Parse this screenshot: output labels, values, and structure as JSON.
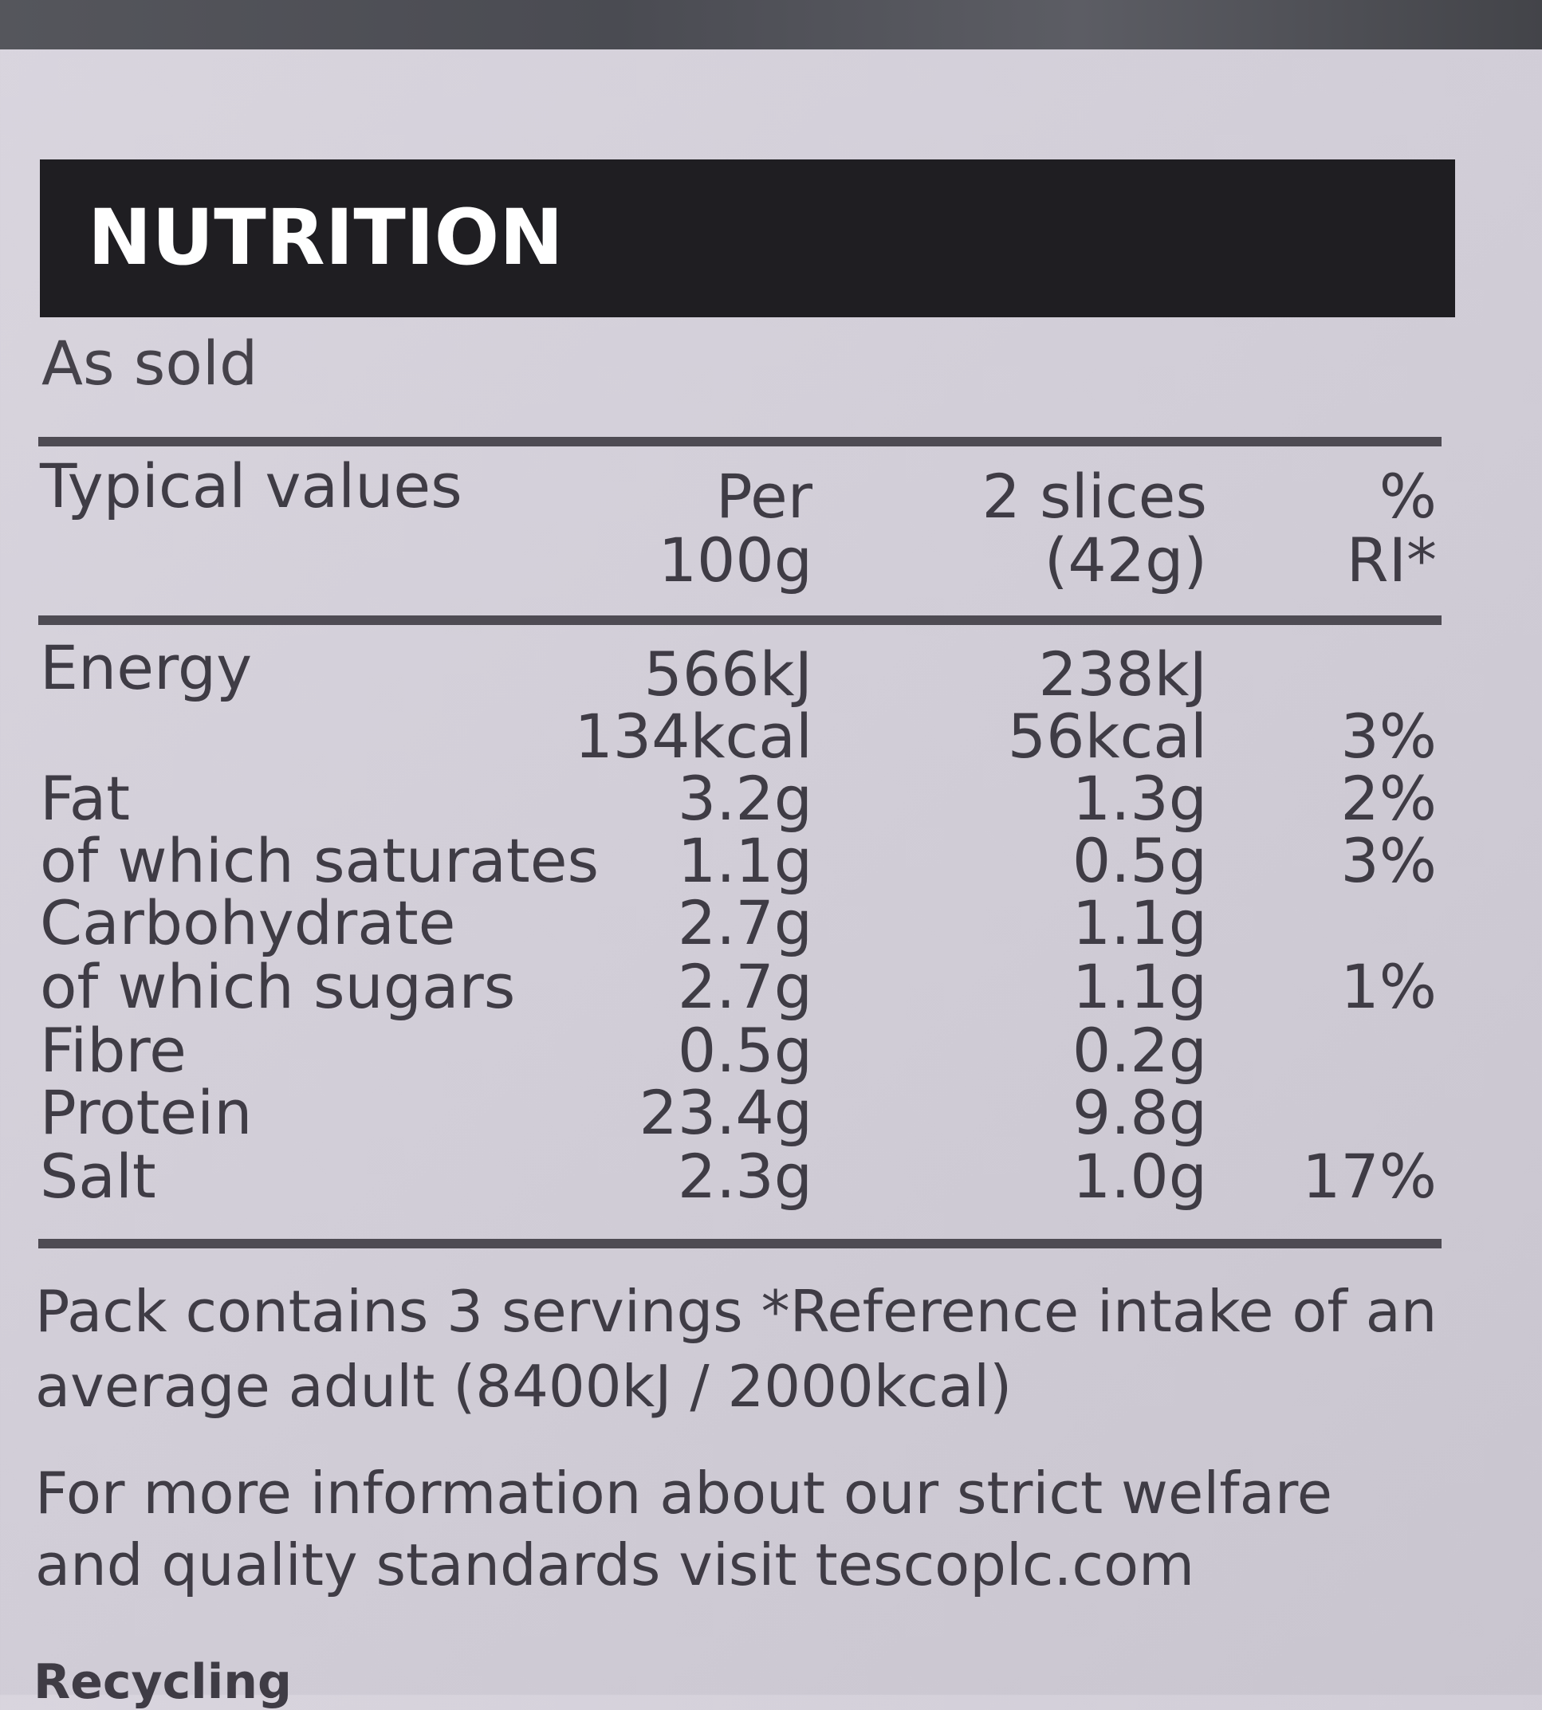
{
  "header": {
    "title": "NUTRITION"
  },
  "subtitle": "As sold",
  "columns": {
    "label": "Typical values",
    "per100_line1": "Per",
    "per100_line2": "100g",
    "serving_line1": "2 slices",
    "serving_line2": "(42g)",
    "ri_line1": "%",
    "ri_line2": "RI*"
  },
  "rows": [
    {
      "label": "Energy",
      "per100": "566kJ",
      "serving": "238kJ",
      "ri": ""
    },
    {
      "label": "",
      "per100": "134kcal",
      "serving": "56kcal",
      "ri": "3%"
    },
    {
      "label": "Fat",
      "per100": "3.2g",
      "serving": "1.3g",
      "ri": "2%"
    },
    {
      "label": "of which saturates",
      "per100": "1.1g",
      "serving": "0.5g",
      "ri": "3%"
    },
    {
      "label": "Carbohydrate",
      "per100": "2.7g",
      "serving": "1.1g",
      "ri": ""
    },
    {
      "label": "of which sugars",
      "per100": "2.7g",
      "serving": "1.1g",
      "ri": "1%"
    },
    {
      "label": "Fibre",
      "per100": "0.5g",
      "serving": "0.2g",
      "ri": ""
    },
    {
      "label": "Protein",
      "per100": "23.4g",
      "serving": "9.8g",
      "ri": ""
    },
    {
      "label": "Salt",
      "per100": "2.3g",
      "serving": "1.0g",
      "ri": "17%"
    }
  ],
  "footer": {
    "line1": "Pack contains 3 servings  *Reference intake of an",
    "line2": "average adult (8400kJ / 2000kcal)",
    "line3": "For more information about our strict welfare",
    "line4": "and quality standards visit tescoplc.com"
  },
  "next_section": "Recycling"
}
